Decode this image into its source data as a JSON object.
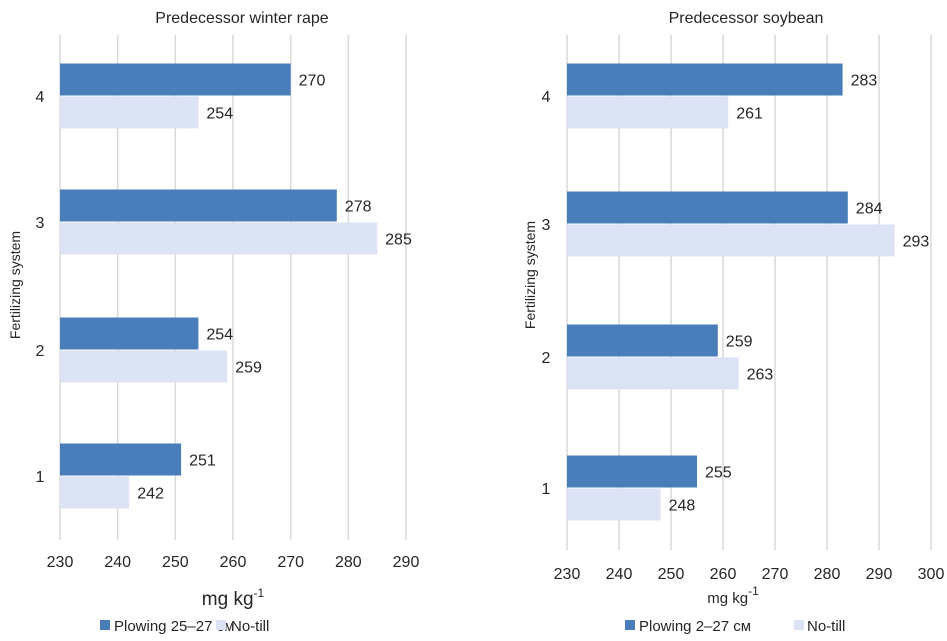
{
  "chart_data": [
    {
      "type": "bar",
      "orientation": "horizontal",
      "title": "Predecessor winter rape",
      "ylabel": "Fertilizing system",
      "xlabel_main": "mg kg",
      "xlabel_sup": "-1",
      "categories": [
        "1",
        "2",
        "3",
        "4"
      ],
      "series": [
        {
          "name": "Plowing 25–27 см",
          "color": "#4a7ebb",
          "values": [
            251,
            254,
            278,
            270
          ]
        },
        {
          "name": "No-till",
          "color": "#dbe3f4",
          "values": [
            242,
            259,
            285,
            254
          ]
        }
      ],
      "xlim": [
        230,
        290
      ],
      "xticks": [
        "230",
        "240",
        "250",
        "260",
        "270",
        "280",
        "290"
      ],
      "grid": true,
      "legend": "bottom"
    },
    {
      "type": "bar",
      "orientation": "horizontal",
      "title": "Predecessor soybean",
      "ylabel": "Fertilizing system",
      "xlabel_main": "mg kg",
      "xlabel_sup": "-1",
      "categories": [
        "1",
        "2",
        "3",
        "4"
      ],
      "series": [
        {
          "name": "Plowing 2–27 см",
          "color": "#4a7ebb",
          "values": [
            255,
            259,
            284,
            283
          ]
        },
        {
          "name": "No-till",
          "color": "#dbe3f4",
          "values": [
            248,
            263,
            293,
            261
          ]
        }
      ],
      "xlim": [
        230,
        300
      ],
      "xticks": [
        "230",
        "240",
        "250",
        "260",
        "270",
        "280",
        "290",
        "300"
      ],
      "grid": true,
      "legend": "bottom"
    }
  ]
}
